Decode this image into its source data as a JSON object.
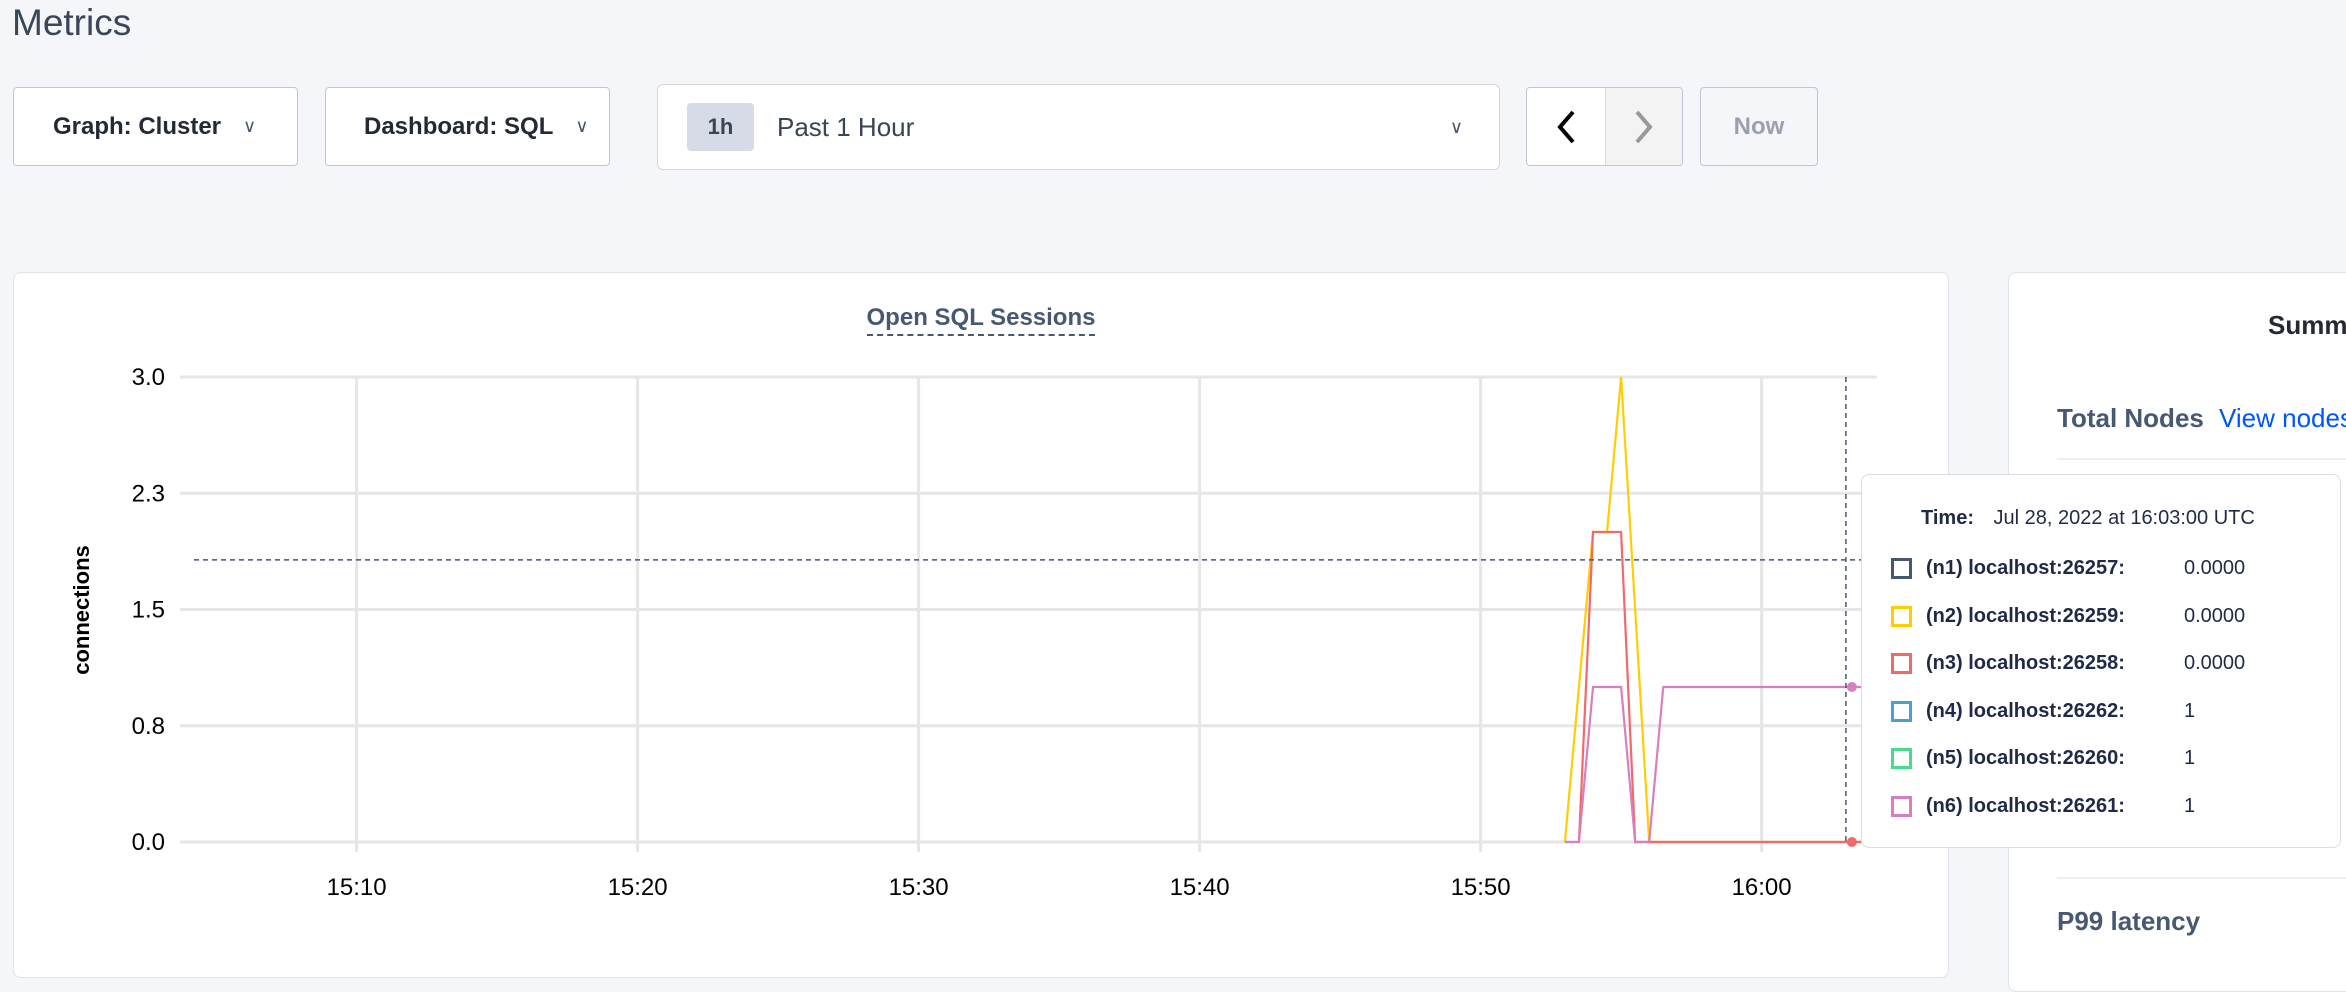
{
  "page": {
    "title": "Metrics"
  },
  "toolbar": {
    "graph_label": "Graph: Cluster",
    "dashboard_label": "Dashboard: SQL",
    "time_badge": "1h",
    "time_range": "Past 1 Hour",
    "prev_icon": "chevron-left-icon",
    "next_icon": "chevron-right-icon",
    "now_label": "Now"
  },
  "summary": {
    "title": "Summ",
    "total_nodes_label": "Total Nodes",
    "view_nodes_link": "View nodes",
    "p99_label": "P99 latency",
    "link_color": "#0055ff"
  },
  "tooltip": {
    "time_label": "Time:",
    "time_value": "Jul 28, 2022 at 16:03:00 UTC",
    "rows": [
      {
        "name": "(n1) localhost:26257:",
        "value": "0.0000",
        "color": "#475872"
      },
      {
        "name": "(n2) localhost:26259:",
        "value": "0.0000",
        "color": "#ffcd02"
      },
      {
        "name": "(n3) localhost:26258:",
        "value": "0.0000",
        "color": "#f16969"
      },
      {
        "name": "(n4) localhost:26262:",
        "value": "1",
        "color": "#4e9fd1"
      },
      {
        "name": "(n5) localhost:26260:",
        "value": "1",
        "color": "#49d990"
      },
      {
        "name": "(n6) localhost:26261:",
        "value": "1",
        "color": "#d77fbf"
      }
    ]
  },
  "chart_data": {
    "type": "line",
    "title": "Open SQL Sessions",
    "xlabel": "",
    "ylabel": "connections",
    "xlim": [
      "15:04",
      "16:04"
    ],
    "ylim": [
      0,
      3
    ],
    "x_ticks": [
      "15:10",
      "15:20",
      "15:30",
      "15:40",
      "15:50",
      "16:00"
    ],
    "y_ticks": [
      {
        "value": 0,
        "label": "0.0"
      },
      {
        "value": 0.75,
        "label": "0.8"
      },
      {
        "value": 1.5,
        "label": "1.5"
      },
      {
        "value": 2.25,
        "label": "2.3"
      },
      {
        "value": 3,
        "label": "3.0"
      }
    ],
    "grid": true,
    "crosshair": {
      "time": "16:03:00",
      "y": 1.82
    },
    "series": [
      {
        "name": "(n2) localhost:26259",
        "color": "#ffcd02",
        "points": [
          [
            "15:53:00",
            0
          ],
          [
            "15:54:00",
            2
          ],
          [
            "15:54:30",
            2
          ],
          [
            "15:55:00",
            3
          ],
          [
            "15:56:00",
            0
          ],
          [
            "16:04:00",
            0
          ]
        ]
      },
      {
        "name": "(n3) localhost:26258",
        "color": "#f16969",
        "points": [
          [
            "15:53:30",
            0
          ],
          [
            "15:54:00",
            2
          ],
          [
            "15:55:00",
            2
          ],
          [
            "15:55:30",
            0
          ],
          [
            "16:04:00",
            0
          ]
        ]
      },
      {
        "name": "(n6) localhost:26261",
        "color": "#d77fbf",
        "points": [
          [
            "15:53:00",
            0
          ],
          [
            "15:53:30",
            0
          ],
          [
            "15:54:00",
            1
          ],
          [
            "15:55:00",
            1
          ],
          [
            "15:55:30",
            0
          ],
          [
            "15:56:00",
            0
          ],
          [
            "15:56:30",
            1
          ],
          [
            "16:04:00",
            1
          ]
        ]
      }
    ]
  }
}
